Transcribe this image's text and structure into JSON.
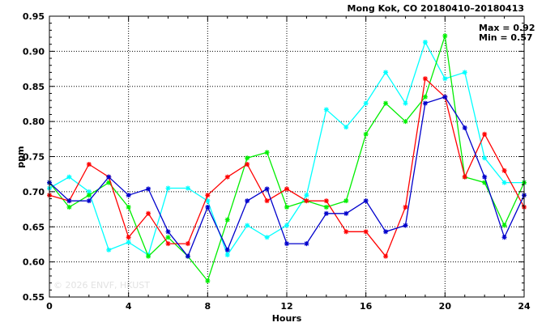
{
  "chart_data": {
    "type": "line",
    "title": "Mong Kok, CO 20180410–20180413",
    "xlabel": "Hours",
    "ylabel": "ppm",
    "xlim": [
      0,
      24
    ],
    "ylim": [
      0.55,
      0.95
    ],
    "x_ticks": [
      0,
      4,
      8,
      12,
      16,
      20,
      24
    ],
    "y_ticks": [
      0.55,
      0.6,
      0.65,
      0.7,
      0.75,
      0.8,
      0.85,
      0.9,
      0.95
    ],
    "grid": true,
    "legend": "none",
    "annotations": [
      "Max = 0.92",
      "Min = 0.57"
    ],
    "watermark": "© 2026  ENVF, HKUST",
    "x": [
      0,
      1,
      2,
      3,
      4,
      5,
      6,
      7,
      8,
      9,
      10,
      11,
      12,
      13,
      14,
      15,
      16,
      17,
      18,
      19,
      20,
      21,
      22,
      23,
      24
    ],
    "series": [
      {
        "color": "#00ffff",
        "values": [
          0.705,
          0.721,
          0.7,
          0.617,
          0.628,
          0.61,
          0.705,
          0.705,
          0.687,
          0.61,
          0.652,
          0.635,
          0.652,
          0.695,
          0.817,
          0.792,
          0.826,
          0.87,
          0.826,
          0.913,
          0.861,
          0.87,
          0.748,
          0.713,
          0.713
        ]
      },
      {
        "color": "#00ee00",
        "values": [
          0.713,
          0.678,
          0.695,
          0.713,
          0.678,
          0.608,
          0.635,
          0.608,
          0.573,
          0.66,
          0.748,
          0.756,
          0.678,
          0.687,
          0.678,
          0.687,
          0.782,
          0.826,
          0.8,
          0.835,
          0.922,
          0.721,
          0.713,
          0.652,
          0.713
        ]
      },
      {
        "color": "#ff0000",
        "values": [
          0.695,
          0.687,
          0.739,
          0.721,
          0.635,
          0.669,
          0.626,
          0.626,
          0.695,
          0.721,
          0.739,
          0.687,
          0.704,
          0.687,
          0.687,
          0.643,
          0.643,
          0.608,
          0.678,
          0.861,
          0.835,
          0.721,
          0.782,
          0.73,
          0.678
        ]
      },
      {
        "color": "#0000cc",
        "values": [
          0.713,
          0.687,
          0.687,
          0.721,
          0.695,
          0.704,
          0.643,
          0.608,
          0.678,
          0.617,
          0.687,
          0.704,
          0.626,
          0.626,
          0.669,
          0.669,
          0.687,
          0.643,
          0.652,
          0.826,
          0.835,
          0.791,
          0.721,
          0.635,
          0.695
        ]
      }
    ]
  }
}
